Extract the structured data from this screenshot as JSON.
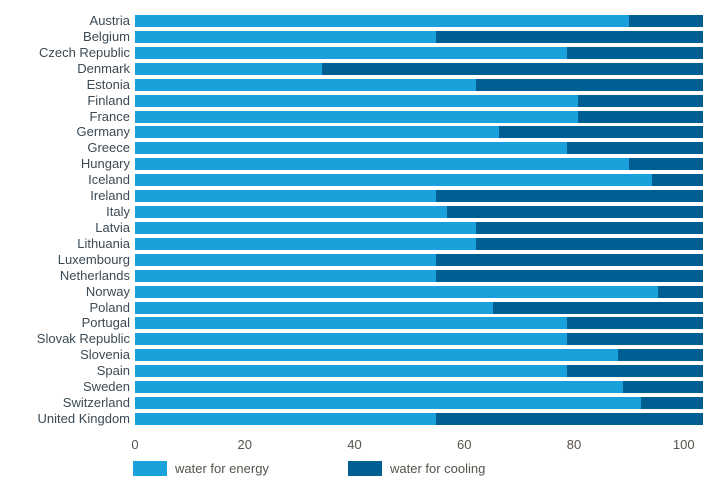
{
  "chart_data": {
    "type": "bar",
    "orientation": "horizontal",
    "stacked": true,
    "unit": "percent",
    "categories": [
      "Austria",
      "Belgium",
      "Czech Republic",
      "Denmark",
      "Estonia",
      "Finland",
      "France",
      "Germany",
      "Greece",
      "Hungary",
      "Iceland",
      "Ireland",
      "Italy",
      "Latvia",
      "Lithuania",
      "Luxembourg",
      "Netherlands",
      "Norway",
      "Poland",
      "Portugal",
      "Slovak Republic",
      "Slovenia",
      "Spain",
      "Sweden",
      "Switzerland",
      "United Kingdom"
    ],
    "series": [
      {
        "name": "water for energy",
        "color": "#1aa0db",
        "values": [
          87,
          53,
          76,
          33,
          60,
          78,
          78,
          64,
          76,
          87,
          91,
          53,
          55,
          60,
          60,
          53,
          53,
          92,
          63,
          76,
          76,
          85,
          76,
          86,
          89,
          53
        ]
      },
      {
        "name": "water for cooling",
        "color": "#005f92",
        "values": [
          13,
          47,
          24,
          67,
          40,
          22,
          22,
          36,
          24,
          13,
          9,
          47,
          45,
          40,
          40,
          47,
          47,
          8,
          37,
          24,
          24,
          15,
          24,
          14,
          11,
          47
        ]
      }
    ],
    "x_ticks": [
      0,
      20,
      40,
      60,
      80,
      100
    ],
    "xlim": [
      0,
      103.5
    ],
    "grid": false,
    "legend_position": "bottom",
    "text_color": "#3b4a55",
    "axis_text_color": "#57524c"
  }
}
